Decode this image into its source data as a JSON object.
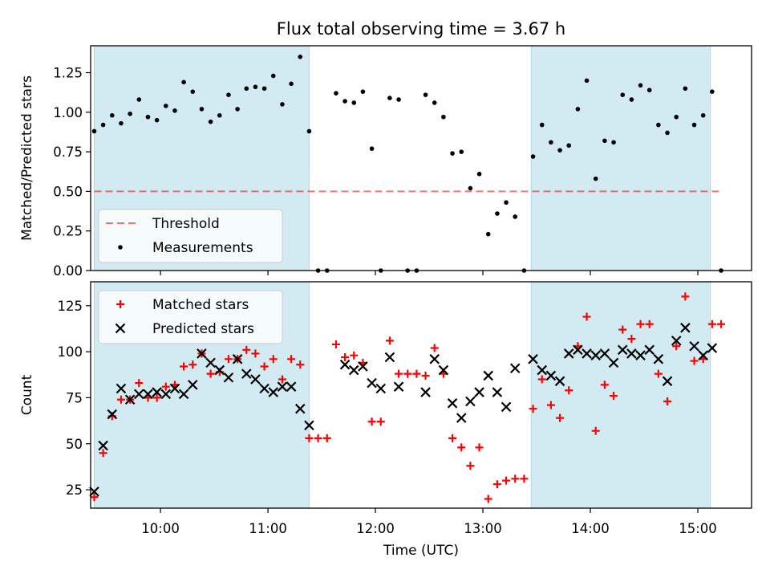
{
  "figure": {
    "title": "Flux total observing time = 3.67 h",
    "xlabel": "Time (UTC)",
    "x_ticks": [
      "10:00",
      "11:00",
      "12:00",
      "13:00",
      "14:00",
      "15:00"
    ]
  },
  "colors": {
    "shade": "#add8e6",
    "threshold": "#ff0000",
    "measurement": "#000000",
    "matched": "#ff0000",
    "predicted": "#000000"
  },
  "chart_data": [
    {
      "type": "scatter",
      "ylabel": "Matched/Predicted stars",
      "xlim": [
        "09:21",
        "15:30"
      ],
      "ylim": [
        0,
        1.42
      ],
      "y_ticks": [
        "0.00",
        "0.25",
        "0.50",
        "0.75",
        "1.00",
        "1.25"
      ],
      "shaded_intervals": [
        [
          "09:23",
          "11:23"
        ],
        [
          "13:27",
          "15:07"
        ]
      ],
      "threshold": {
        "name": "Threshold",
        "value": 0.5,
        "x_range": [
          "09:23",
          "15:13"
        ]
      },
      "legend": {
        "loc": "lower left",
        "entries": [
          "Threshold",
          "Measurements"
        ]
      },
      "series": [
        {
          "name": "Measurements",
          "x": [
            "09:23",
            "09:28",
            "09:33",
            "09:38",
            "09:43",
            "09:48",
            "09:53",
            "09:58",
            "10:03",
            "10:08",
            "10:13",
            "10:18",
            "10:23",
            "10:28",
            "10:33",
            "10:38",
            "10:43",
            "10:48",
            "10:53",
            "10:58",
            "11:03",
            "11:08",
            "11:13",
            "11:18",
            "11:23",
            "11:28",
            "11:33",
            "11:38",
            "11:43",
            "11:48",
            "11:53",
            "11:58",
            "12:03",
            "12:08",
            "12:13",
            "12:18",
            "12:23",
            "12:28",
            "12:33",
            "12:38",
            "12:43",
            "12:48",
            "12:53",
            "12:58",
            "13:03",
            "13:08",
            "13:13",
            "13:18",
            "13:23",
            "13:28",
            "13:33",
            "13:38",
            "13:43",
            "13:48",
            "13:53",
            "13:58",
            "14:03",
            "14:08",
            "14:13",
            "14:18",
            "14:23",
            "14:28",
            "14:33",
            "14:38",
            "14:43",
            "14:48",
            "14:53",
            "14:58",
            "15:03",
            "15:08",
            "15:13"
          ],
          "y": [
            0.88,
            0.92,
            0.98,
            0.93,
            0.99,
            1.08,
            0.97,
            0.95,
            1.04,
            1.01,
            1.19,
            1.13,
            1.02,
            0.94,
            0.98,
            1.11,
            1.02,
            1.15,
            1.16,
            1.15,
            1.23,
            1.05,
            1.18,
            1.35,
            0.88,
            0.0,
            0.0,
            1.12,
            1.07,
            1.06,
            1.13,
            0.77,
            0.0,
            1.09,
            1.08,
            0.0,
            0.0,
            1.11,
            1.06,
            0.97,
            0.74,
            0.75,
            0.52,
            0.61,
            0.23,
            0.36,
            0.43,
            0.34,
            0.0,
            0.72,
            0.92,
            0.81,
            0.76,
            0.79,
            1.02,
            1.2,
            0.58,
            0.82,
            0.81,
            1.11,
            1.08,
            1.17,
            1.14,
            0.92,
            0.87,
            0.97,
            1.15,
            0.92,
            0.98,
            1.13,
            0.0
          ]
        }
      ]
    },
    {
      "type": "scatter",
      "ylabel": "Count",
      "xlim": [
        "09:21",
        "15:30"
      ],
      "ylim": [
        15,
        138
      ],
      "y_ticks": [
        "25",
        "50",
        "75",
        "100",
        "125"
      ],
      "shaded_intervals": [
        [
          "09:23",
          "11:23"
        ],
        [
          "13:27",
          "15:07"
        ]
      ],
      "legend": {
        "loc": "upper left",
        "entries": [
          "Matched stars",
          "Predicted stars"
        ]
      },
      "series": [
        {
          "name": "Matched stars",
          "x": [
            "09:23",
            "09:28",
            "09:33",
            "09:38",
            "09:43",
            "09:48",
            "09:53",
            "09:58",
            "10:03",
            "10:08",
            "10:13",
            "10:18",
            "10:23",
            "10:28",
            "10:33",
            "10:38",
            "10:43",
            "10:48",
            "10:53",
            "10:58",
            "11:03",
            "11:08",
            "11:13",
            "11:18",
            "11:23",
            "11:28",
            "11:33",
            "11:38",
            "11:43",
            "11:48",
            "11:53",
            "11:58",
            "12:03",
            "12:08",
            "12:13",
            "12:18",
            "12:23",
            "12:28",
            "12:33",
            "12:38",
            "12:43",
            "12:48",
            "12:53",
            "12:58",
            "13:03",
            "13:08",
            "13:13",
            "13:18",
            "13:23",
            "13:28",
            "13:33",
            "13:38",
            "13:43",
            "13:48",
            "13:53",
            "13:58",
            "14:03",
            "14:08",
            "14:13",
            "14:18",
            "14:23",
            "14:28",
            "14:33",
            "14:38",
            "14:43",
            "14:48",
            "14:53",
            "14:58",
            "15:03",
            "15:08",
            "15:13"
          ],
          "y": [
            21,
            45,
            65,
            74,
            74,
            83,
            75,
            75,
            81,
            82,
            92,
            93,
            99,
            88,
            89,
            96,
            96,
            101,
            99,
            92,
            96,
            85,
            96,
            93,
            53,
            53,
            53,
            104,
            97,
            98,
            94,
            62,
            62,
            106,
            88,
            88,
            88,
            87,
            102,
            88,
            53,
            48,
            38,
            48,
            20,
            28,
            30,
            31,
            31,
            69,
            85,
            71,
            64,
            79,
            103,
            119,
            57,
            82,
            76,
            112,
            107,
            115,
            115,
            88,
            73,
            103,
            130,
            95,
            96,
            115,
            115
          ]
        },
        {
          "name": "Predicted stars",
          "x": [
            "09:23",
            "09:28",
            "09:33",
            "09:38",
            "09:43",
            "09:48",
            "09:53",
            "09:58",
            "10:03",
            "10:08",
            "10:13",
            "10:18",
            "10:23",
            "10:28",
            "10:33",
            "10:38",
            "10:43",
            "10:48",
            "10:53",
            "10:58",
            "11:03",
            "11:08",
            "11:13",
            "11:18",
            "11:23",
            "11:43",
            "11:48",
            "11:53",
            "11:58",
            "12:03",
            "12:08",
            "12:13",
            "12:28",
            "12:33",
            "12:38",
            "12:43",
            "12:48",
            "12:53",
            "12:58",
            "13:03",
            "13:08",
            "13:13",
            "13:18",
            "13:28",
            "13:33",
            "13:38",
            "13:43",
            "13:48",
            "13:53",
            "13:58",
            "14:03",
            "14:08",
            "14:13",
            "14:18",
            "14:23",
            "14:28",
            "14:33",
            "14:38",
            "14:43",
            "14:48",
            "14:53",
            "14:58",
            "15:03",
            "15:08"
          ],
          "y": [
            24,
            49,
            66,
            80,
            74,
            77,
            77,
            78,
            77,
            80,
            77,
            82,
            99,
            94,
            90,
            86,
            96,
            88,
            85,
            80,
            78,
            81,
            81,
            69,
            60,
            93,
            90,
            92,
            83,
            80,
            97,
            81,
            78,
            96,
            90,
            72,
            64,
            73,
            78,
            87,
            78,
            70,
            91,
            96,
            90,
            87,
            84,
            99,
            101,
            99,
            98,
            99,
            94,
            101,
            99,
            98,
            101,
            96,
            84,
            106,
            113,
            103,
            98,
            102
          ]
        }
      ]
    }
  ]
}
